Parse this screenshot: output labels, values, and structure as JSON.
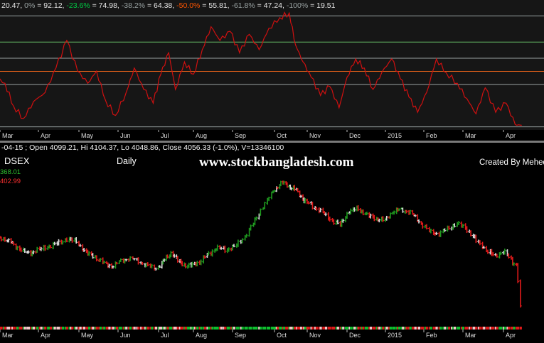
{
  "top_panel": {
    "header": "20.47, 0% = 92.12, -23.6% = 74.98, -38.2% = 64.38, -50.0% = 55.81, -61.8% = 47.24, -100% = 19.51",
    "header_parts": [
      {
        "text": "20.47, ",
        "color": "#e8e8e8"
      },
      {
        "text": "0%",
        "color": "#9aa3a3"
      },
      {
        "text": " = 92.12, ",
        "color": "#e8e8e8"
      },
      {
        "text": "-23.6%",
        "color": "#00cc44"
      },
      {
        "text": " = 74.98, ",
        "color": "#e8e8e8"
      },
      {
        "text": "-38.2%",
        "color": "#9aa3a3"
      },
      {
        "text": " = 64.38, ",
        "color": "#e8e8e8"
      },
      {
        "text": "-50.0%",
        "color": "#ff5500"
      },
      {
        "text": " = 55.81, ",
        "color": "#e8e8e8"
      },
      {
        "text": "-61.8%",
        "color": "#9aa3a3"
      },
      {
        "text": " = 47.24, ",
        "color": "#e8e8e8"
      },
      {
        "text": "-100%",
        "color": "#9aa3a3"
      },
      {
        "text": " = 19.51",
        "color": "#e8e8e8"
      }
    ]
  },
  "bottom_panel": {
    "header": "-04-15 ; Open 4099.21, Hi 4104.37, Lo 4048.86, Close 4056.33 (-1.0%), V=13346100",
    "symbol": "DSEX",
    "interval": "Daily",
    "watermark": "www.stockbangladesh.com",
    "credit": "Created By Mehedi Ar",
    "price_marker_high": "368.01",
    "price_marker_low": "402.99"
  },
  "colors": {
    "background": "#000000",
    "panel_top": "#161616",
    "oscillator_line": "#d01010",
    "up_bar": "#1f9a1f",
    "down_bar": "#e01a1a",
    "neutral_bar": "#dddddd",
    "fib_0": "#9aa3a3",
    "fib_236": "#66bb66",
    "fib_382": "#9aa3a3",
    "fib_50": "#e0601a",
    "fib_618": "#9aa3a3",
    "fib_100": "#9aa3a3"
  },
  "chart_data": [
    {
      "type": "line",
      "name": "oscillator",
      "x_tick_labels": [
        "Mar",
        "Apr",
        "May",
        "Jun",
        "Jul",
        "Aug",
        "Sep",
        "Oct",
        "Nov",
        "Dec",
        "2015",
        "Feb",
        "Mar",
        "Apr"
      ],
      "x_tick_dates": [
        "2014-03-01",
        "2014-04-01",
        "2014-05-01",
        "2014-06-01",
        "2014-07-01",
        "2014-08-01",
        "2014-09-01",
        "2014-10-01",
        "2014-11-01",
        "2014-12-01",
        "2015-01-01",
        "2015-02-01",
        "2015-03-01",
        "2015-04-01"
      ],
      "fib_levels": [
        {
          "label": "0%",
          "value": 92.12
        },
        {
          "label": "-23.6%",
          "value": 74.98
        },
        {
          "label": "-38.2%",
          "value": 64.38
        },
        {
          "label": "-50.0%",
          "value": 55.81
        },
        {
          "label": "-61.8%",
          "value": 47.24
        },
        {
          "label": "-100%",
          "value": 19.51
        }
      ],
      "last_value": 20.47,
      "ylim": [
        17,
        96
      ],
      "points": [
        [
          "2014-02-25",
          52
        ],
        [
          "2014-03-05",
          48
        ],
        [
          "2014-03-12",
          33
        ],
        [
          "2014-03-20",
          25
        ],
        [
          "2014-03-28",
          36
        ],
        [
          "2014-04-06",
          42
        ],
        [
          "2014-04-14",
          58
        ],
        [
          "2014-04-22",
          76
        ],
        [
          "2014-04-30",
          56
        ],
        [
          "2014-05-08",
          48
        ],
        [
          "2014-05-15",
          56
        ],
        [
          "2014-05-22",
          37
        ],
        [
          "2014-05-30",
          27
        ],
        [
          "2014-06-07",
          42
        ],
        [
          "2014-06-13",
          58
        ],
        [
          "2014-06-20",
          44
        ],
        [
          "2014-06-27",
          35
        ],
        [
          "2014-07-03",
          54
        ],
        [
          "2014-07-10",
          68
        ],
        [
          "2014-07-16",
          44
        ],
        [
          "2014-07-24",
          62
        ],
        [
          "2014-08-01",
          54
        ],
        [
          "2014-08-08",
          70
        ],
        [
          "2014-08-15",
          85
        ],
        [
          "2014-08-22",
          76
        ],
        [
          "2014-08-30",
          82
        ],
        [
          "2014-09-06",
          68
        ],
        [
          "2014-09-13",
          80
        ],
        [
          "2014-09-20",
          70
        ],
        [
          "2014-09-27",
          84
        ],
        [
          "2014-10-06",
          91
        ],
        [
          "2014-10-15",
          94
        ],
        [
          "2014-10-21",
          73
        ],
        [
          "2014-10-28",
          62
        ],
        [
          "2014-11-04",
          52
        ],
        [
          "2014-11-11",
          40
        ],
        [
          "2014-11-18",
          46
        ],
        [
          "2014-11-25",
          32
        ],
        [
          "2014-12-01",
          52
        ],
        [
          "2014-12-08",
          64
        ],
        [
          "2014-12-15",
          58
        ],
        [
          "2014-12-22",
          44
        ],
        [
          "2014-12-29",
          55
        ],
        [
          "2015-01-06",
          64
        ],
        [
          "2015-01-13",
          51
        ],
        [
          "2015-01-20",
          39
        ],
        [
          "2015-01-27",
          29
        ],
        [
          "2015-02-03",
          42
        ],
        [
          "2015-02-10",
          64
        ],
        [
          "2015-02-17",
          55
        ],
        [
          "2015-02-25",
          48
        ],
        [
          "2015-03-04",
          38
        ],
        [
          "2015-03-11",
          28
        ],
        [
          "2015-03-18",
          45
        ],
        [
          "2015-03-26",
          29
        ],
        [
          "2015-04-03",
          35
        ],
        [
          "2015-04-10",
          21
        ],
        [
          "2015-04-15",
          20.47
        ]
      ]
    },
    {
      "type": "bar",
      "name": "DSEX",
      "x_tick_labels": [
        "Mar",
        "Apr",
        "May",
        "Jun",
        "Jul",
        "Aug",
        "Sep",
        "Oct",
        "Nov",
        "Dec",
        "2015",
        "Feb",
        "Mar",
        "Apr"
      ],
      "x_tick_dates": [
        "2014-03-01",
        "2014-04-01",
        "2014-05-01",
        "2014-06-01",
        "2014-07-01",
        "2014-08-01",
        "2014-09-01",
        "2014-10-01",
        "2014-11-01",
        "2014-12-01",
        "2015-01-01",
        "2015-02-01",
        "2015-03-01",
        "2015-04-01"
      ],
      "ylim": [
        3990,
        5600
      ],
      "close_path": [
        [
          "2014-02-25",
          4920
        ],
        [
          "2014-03-06",
          4900
        ],
        [
          "2014-03-15",
          4820
        ],
        [
          "2014-03-24",
          4750
        ],
        [
          "2014-04-04",
          4800
        ],
        [
          "2014-04-15",
          4850
        ],
        [
          "2014-04-23",
          4900
        ],
        [
          "2014-04-30",
          4870
        ],
        [
          "2014-05-07",
          4760
        ],
        [
          "2014-05-14",
          4720
        ],
        [
          "2014-05-20",
          4660
        ],
        [
          "2014-05-28",
          4620
        ],
        [
          "2014-06-05",
          4690
        ],
        [
          "2014-06-13",
          4700
        ],
        [
          "2014-06-21",
          4640
        ],
        [
          "2014-06-30",
          4600
        ],
        [
          "2014-07-07",
          4690
        ],
        [
          "2014-07-13",
          4760
        ],
        [
          "2014-07-20",
          4660
        ],
        [
          "2014-07-28",
          4620
        ],
        [
          "2014-08-06",
          4660
        ],
        [
          "2014-08-13",
          4740
        ],
        [
          "2014-08-20",
          4810
        ],
        [
          "2014-08-27",
          4790
        ],
        [
          "2014-09-03",
          4820
        ],
        [
          "2014-09-10",
          4920
        ],
        [
          "2014-09-17",
          5080
        ],
        [
          "2014-09-24",
          5250
        ],
        [
          "2014-10-01",
          5400
        ],
        [
          "2014-10-09",
          5480
        ],
        [
          "2014-10-15",
          5440
        ],
        [
          "2014-10-22",
          5400
        ],
        [
          "2014-10-29",
          5300
        ],
        [
          "2014-11-05",
          5240
        ],
        [
          "2014-11-12",
          5180
        ],
        [
          "2014-11-19",
          5100
        ],
        [
          "2014-11-26",
          5040
        ],
        [
          "2014-12-03",
          5180
        ],
        [
          "2014-12-10",
          5210
        ],
        [
          "2014-12-17",
          5150
        ],
        [
          "2014-12-24",
          5110
        ],
        [
          "2015-01-01",
          5090
        ],
        [
          "2015-01-08",
          5190
        ],
        [
          "2015-01-15",
          5200
        ],
        [
          "2015-01-22",
          5170
        ],
        [
          "2015-01-29",
          5080
        ],
        [
          "2015-02-05",
          4980
        ],
        [
          "2015-02-12",
          4950
        ],
        [
          "2015-02-19",
          5010
        ],
        [
          "2015-02-26",
          5060
        ],
        [
          "2015-03-05",
          4990
        ],
        [
          "2015-03-12",
          4880
        ],
        [
          "2015-03-19",
          4790
        ],
        [
          "2015-03-26",
          4720
        ],
        [
          "2015-04-02",
          4780
        ],
        [
          "2015-04-08",
          4660
        ],
        [
          "2015-04-12",
          4640
        ],
        [
          "2015-04-15",
          4056.33
        ]
      ],
      "last_bar": {
        "date": "2015-04-15",
        "open": 4099.21,
        "high": 4104.37,
        "low": 4048.86,
        "close": 4056.33,
        "change_pct": -1.0,
        "volume": 13346100
      }
    }
  ]
}
